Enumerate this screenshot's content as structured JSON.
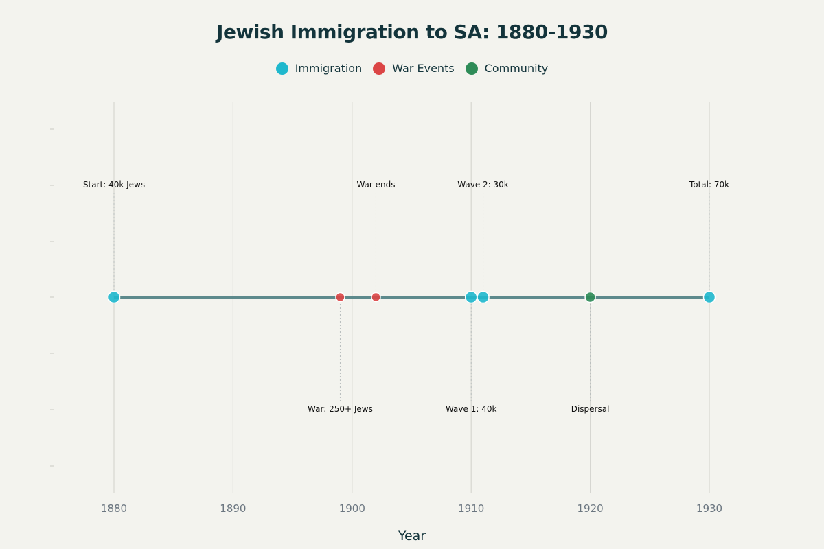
{
  "chart_data": {
    "type": "timeline",
    "title": "Jewish Immigration to SA: 1880-1930",
    "xlabel": "Year",
    "ylabel": "",
    "xlim": [
      1875,
      1935
    ],
    "x_ticks": [
      1880,
      1890,
      1900,
      1910,
      1920,
      1930
    ],
    "grid": true,
    "legend_position": "top-center",
    "legend": [
      {
        "name": "Immigration",
        "color": "#1fb8cd"
      },
      {
        "name": "War Events",
        "color": "#db4545"
      },
      {
        "name": "Community",
        "color": "#2e8b57"
      }
    ],
    "line_color": "#5d8a8c",
    "events": [
      {
        "year": 1880,
        "category": "Immigration",
        "label": "Start: 40k Jews",
        "label_side": "above"
      },
      {
        "year": 1899,
        "category": "War Events",
        "label": "War: 250+ Jews",
        "label_side": "below"
      },
      {
        "year": 1902,
        "category": "War Events",
        "label": "War ends",
        "label_side": "above"
      },
      {
        "year": 1910,
        "category": "Immigration",
        "label": "Wave 1: 40k",
        "label_side": "below"
      },
      {
        "year": 1911,
        "category": "Immigration",
        "label": "Wave 2: 30k",
        "label_side": "above"
      },
      {
        "year": 1920,
        "category": "Community",
        "label": "Dispersal",
        "label_side": "below"
      },
      {
        "year": 1930,
        "category": "Immigration",
        "label": "Total: 70k",
        "label_side": "above"
      }
    ]
  }
}
